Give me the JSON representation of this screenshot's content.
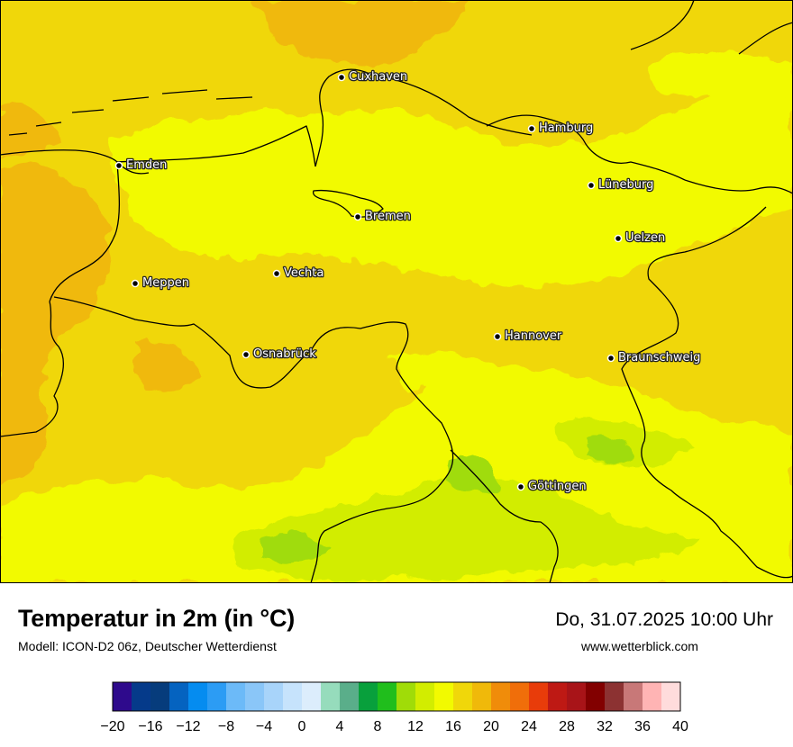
{
  "header": {
    "title": "Temperatur in 2m (in °C)",
    "subtitle": "Modell: ICON-D2 06z, Deutscher Wetterdienst",
    "datetime": "Do, 31.07.2025 10:00 Uhr",
    "website": "www.wetterblick.com"
  },
  "map": {
    "variable": "2m temperature",
    "background_color": "#f0d70a",
    "cities": [
      {
        "name": "Cuxhaven"
      },
      {
        "name": "Hamburg"
      },
      {
        "name": "Emden"
      },
      {
        "name": "Lüneburg"
      },
      {
        "name": "Bremen"
      },
      {
        "name": "Uelzen"
      },
      {
        "name": "Vechta"
      },
      {
        "name": "Meppen"
      },
      {
        "name": "Hannover"
      },
      {
        "name": "Osnabrück"
      },
      {
        "name": "Braunschweig"
      },
      {
        "name": "Göttingen"
      }
    ]
  },
  "colorbar": {
    "min": -20,
    "max": 40,
    "step": 2,
    "tick_labels": [
      "−20",
      "−16",
      "−12",
      "−8",
      "−4",
      "0",
      "4",
      "8",
      "12",
      "16",
      "20",
      "24",
      "28",
      "32",
      "36",
      "40"
    ],
    "colors": [
      "#2e0a8c",
      "#053a8a",
      "#063c7c",
      "#0563c0",
      "#058cf0",
      "#2c9cf4",
      "#6cbaf8",
      "#8ac6f8",
      "#a8d4fa",
      "#c6e3fc",
      "#dcedfc",
      "#96dcbc",
      "#5aae8a",
      "#08a03c",
      "#20be1c",
      "#a0dc08",
      "#d2ed00",
      "#f2fa00",
      "#f0d70a",
      "#f0b90a",
      "#f08c0a",
      "#f06e0a",
      "#e83c0a",
      "#be1914",
      "#a81418",
      "#820000",
      "#8c3232",
      "#c87878",
      "#ffb4b4",
      "#ffdcdc"
    ]
  }
}
